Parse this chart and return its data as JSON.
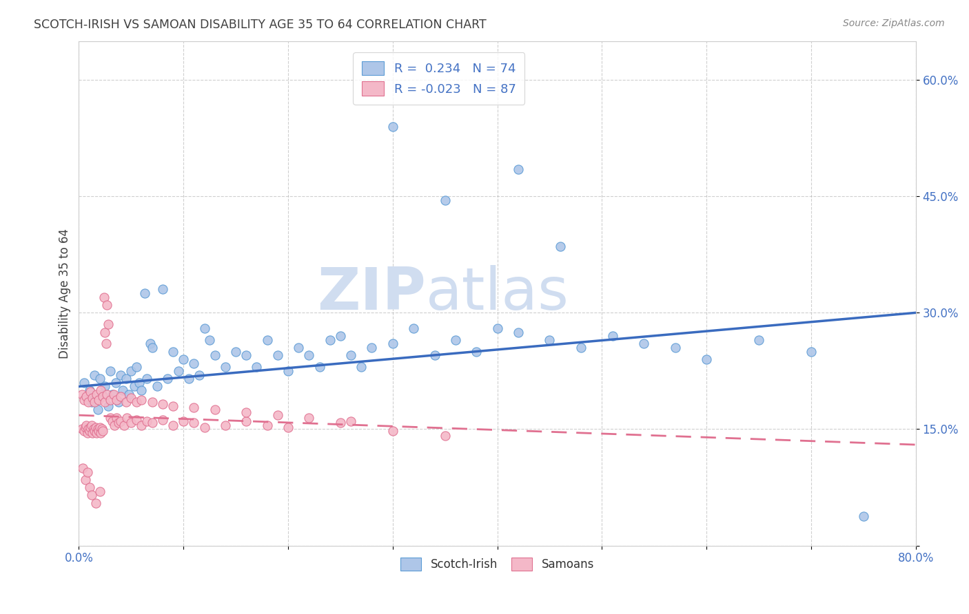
{
  "title": "SCOTCH-IRISH VS SAMOAN DISABILITY AGE 35 TO 64 CORRELATION CHART",
  "source": "Source: ZipAtlas.com",
  "ylabel": "Disability Age 35 to 64",
  "xlim": [
    0.0,
    0.8
  ],
  "ylim": [
    0.0,
    0.65
  ],
  "xtick_vals": [
    0.0,
    0.1,
    0.2,
    0.3,
    0.4,
    0.5,
    0.6,
    0.7,
    0.8
  ],
  "ytick_vals": [
    0.0,
    0.15,
    0.3,
    0.45,
    0.6
  ],
  "scotch_irish_color": "#aec6e8",
  "samoan_color": "#f4b8c8",
  "scotch_irish_edge_color": "#5b9bd5",
  "samoan_edge_color": "#e07090",
  "scotch_irish_line_color": "#3a6bbf",
  "samoan_line_color": "#e07090",
  "scotch_irish_R": 0.234,
  "scotch_irish_N": 74,
  "samoan_R": -0.023,
  "samoan_N": 87,
  "background_color": "#ffffff",
  "grid_color": "#b0b0b0",
  "axis_color": "#4472c4",
  "title_color": "#404040",
  "source_color": "#888888",
  "ylabel_color": "#404040",
  "watermark_zip_color": "#d0ddf0",
  "watermark_atlas_color": "#d0ddf0",
  "si_line_y0": 0.205,
  "si_line_y1": 0.3,
  "sa_line_y0": 0.168,
  "sa_line_y1": 0.13,
  "scotch_irish_x": [
    0.005,
    0.008,
    0.01,
    0.012,
    0.015,
    0.018,
    0.02,
    0.022,
    0.025,
    0.028,
    0.03,
    0.032,
    0.035,
    0.038,
    0.04,
    0.042,
    0.045,
    0.048,
    0.05,
    0.053,
    0.055,
    0.058,
    0.06,
    0.063,
    0.065,
    0.068,
    0.07,
    0.075,
    0.08,
    0.085,
    0.09,
    0.095,
    0.1,
    0.105,
    0.11,
    0.115,
    0.12,
    0.125,
    0.13,
    0.14,
    0.15,
    0.16,
    0.17,
    0.18,
    0.19,
    0.2,
    0.21,
    0.22,
    0.23,
    0.24,
    0.25,
    0.26,
    0.27,
    0.28,
    0.3,
    0.32,
    0.34,
    0.36,
    0.38,
    0.4,
    0.42,
    0.45,
    0.48,
    0.51,
    0.54,
    0.57,
    0.6,
    0.65,
    0.7,
    0.75,
    0.35,
    0.3,
    0.42,
    0.46
  ],
  "scotch_irish_y": [
    0.21,
    0.19,
    0.2,
    0.185,
    0.22,
    0.175,
    0.215,
    0.195,
    0.205,
    0.18,
    0.225,
    0.195,
    0.21,
    0.185,
    0.22,
    0.2,
    0.215,
    0.195,
    0.225,
    0.205,
    0.23,
    0.21,
    0.2,
    0.325,
    0.215,
    0.26,
    0.255,
    0.205,
    0.33,
    0.215,
    0.25,
    0.225,
    0.24,
    0.215,
    0.235,
    0.22,
    0.28,
    0.265,
    0.245,
    0.23,
    0.25,
    0.245,
    0.23,
    0.265,
    0.245,
    0.225,
    0.255,
    0.245,
    0.23,
    0.265,
    0.27,
    0.245,
    0.23,
    0.255,
    0.26,
    0.28,
    0.245,
    0.265,
    0.25,
    0.28,
    0.275,
    0.265,
    0.255,
    0.27,
    0.26,
    0.255,
    0.24,
    0.265,
    0.25,
    0.038,
    0.445,
    0.54,
    0.485,
    0.385
  ],
  "samoan_x": [
    0.003,
    0.005,
    0.006,
    0.007,
    0.008,
    0.009,
    0.01,
    0.011,
    0.012,
    0.013,
    0.014,
    0.015,
    0.016,
    0.017,
    0.018,
    0.019,
    0.02,
    0.021,
    0.022,
    0.023,
    0.024,
    0.025,
    0.026,
    0.027,
    0.028,
    0.03,
    0.032,
    0.034,
    0.036,
    0.038,
    0.04,
    0.043,
    0.046,
    0.05,
    0.055,
    0.06,
    0.065,
    0.07,
    0.08,
    0.09,
    0.1,
    0.11,
    0.12,
    0.14,
    0.16,
    0.18,
    0.2,
    0.25,
    0.3,
    0.35,
    0.003,
    0.005,
    0.007,
    0.009,
    0.011,
    0.013,
    0.015,
    0.017,
    0.019,
    0.021,
    0.023,
    0.025,
    0.027,
    0.03,
    0.033,
    0.036,
    0.04,
    0.045,
    0.05,
    0.055,
    0.06,
    0.07,
    0.08,
    0.09,
    0.11,
    0.13,
    0.16,
    0.19,
    0.22,
    0.26,
    0.004,
    0.006,
    0.008,
    0.01,
    0.012,
    0.016,
    0.02
  ],
  "samoan_y": [
    0.15,
    0.148,
    0.152,
    0.155,
    0.145,
    0.15,
    0.148,
    0.152,
    0.155,
    0.145,
    0.15,
    0.148,
    0.152,
    0.145,
    0.15,
    0.148,
    0.152,
    0.145,
    0.15,
    0.148,
    0.32,
    0.275,
    0.26,
    0.31,
    0.285,
    0.165,
    0.16,
    0.155,
    0.165,
    0.158,
    0.16,
    0.155,
    0.165,
    0.158,
    0.162,
    0.155,
    0.16,
    0.158,
    0.162,
    0.155,
    0.16,
    0.158,
    0.152,
    0.155,
    0.16,
    0.155,
    0.152,
    0.158,
    0.148,
    0.142,
    0.195,
    0.188,
    0.192,
    0.185,
    0.198,
    0.19,
    0.185,
    0.195,
    0.188,
    0.2,
    0.192,
    0.185,
    0.195,
    0.188,
    0.195,
    0.188,
    0.192,
    0.185,
    0.19,
    0.185,
    0.188,
    0.185,
    0.182,
    0.18,
    0.178,
    0.175,
    0.172,
    0.168,
    0.165,
    0.16,
    0.1,
    0.085,
    0.095,
    0.075,
    0.065,
    0.055,
    0.07
  ]
}
